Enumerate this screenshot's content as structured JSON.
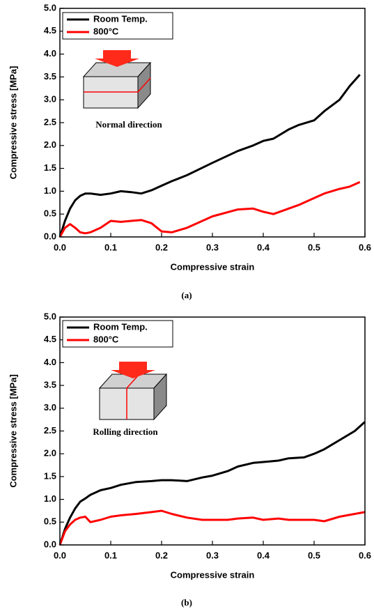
{
  "chart_data": [
    {
      "type": "line",
      "label": "(a)",
      "annotation": "Normal direction",
      "xlabel": "Compressive strain",
      "ylabel": "Compressive stress [MPa]",
      "xlim": [
        0,
        0.6
      ],
      "ylim": [
        0,
        5.0
      ],
      "xticks": [
        {
          "value": 0,
          "label": "0.0"
        },
        0.1,
        0.2,
        0.3,
        0.4,
        0.5,
        0.6
      ],
      "yticks": [
        {
          "value": 0,
          "label": "0.0"
        },
        0.5,
        {
          "value": 1,
          "label": "1.0"
        },
        1.5,
        {
          "value": 2,
          "label": "2.0"
        },
        2.5,
        {
          "value": 3,
          "label": "3.0"
        },
        3.5,
        {
          "value": 4,
          "label": "4.0"
        },
        4.5,
        {
          "value": 5,
          "label": "5.0"
        }
      ],
      "legend": "upper left",
      "x": [
        0,
        0.01,
        0.02,
        0.03,
        0.04,
        0.05,
        0.06,
        0.08,
        0.1,
        0.12,
        0.14,
        0.16,
        0.18,
        0.2,
        0.22,
        0.25,
        0.3,
        0.35,
        0.38,
        0.4,
        0.42,
        0.45,
        0.47,
        0.5,
        0.52,
        0.55,
        0.57,
        0.59
      ],
      "series": [
        {
          "name": "Room Temp.",
          "color": "#000000",
          "values": [
            0,
            0.35,
            0.62,
            0.8,
            0.9,
            0.95,
            0.95,
            0.92,
            0.95,
            1.0,
            0.98,
            0.95,
            1.02,
            1.12,
            1.22,
            1.35,
            1.62,
            1.88,
            2.0,
            2.1,
            2.15,
            2.35,
            2.45,
            2.55,
            2.75,
            3.0,
            3.3,
            3.55
          ]
        },
        {
          "name": "800°C",
          "color": "#ff0000",
          "values": [
            0,
            0.2,
            0.28,
            0.2,
            0.1,
            0.08,
            0.1,
            0.2,
            0.35,
            0.33,
            0.35,
            0.37,
            0.3,
            0.12,
            0.1,
            0.2,
            0.45,
            0.6,
            0.62,
            0.55,
            0.5,
            0.62,
            0.7,
            0.85,
            0.95,
            1.05,
            1.1,
            1.2
          ]
        }
      ]
    },
    {
      "type": "line",
      "label": "(b)",
      "annotation": "Rolling direction",
      "xlabel": "Compressive strain",
      "ylabel": "Compressive stress [MPa]",
      "xlim": [
        0,
        0.6
      ],
      "ylim": [
        0,
        5.0
      ],
      "xticks": [
        {
          "value": 0,
          "label": "0.0"
        },
        0.1,
        0.2,
        0.3,
        0.4,
        0.5,
        0.6
      ],
      "yticks": [
        {
          "value": 0,
          "label": "0.0"
        },
        0.5,
        {
          "value": 1,
          "label": "1.0"
        },
        1.5,
        {
          "value": 2,
          "label": "2.0"
        },
        2.5,
        {
          "value": 3,
          "label": "3.0"
        },
        3.5,
        {
          "value": 4,
          "label": "4.0"
        },
        4.5,
        {
          "value": 5,
          "label": "5.0"
        }
      ],
      "legend": "upper left",
      "x": [
        0,
        0.01,
        0.02,
        0.03,
        0.04,
        0.05,
        0.06,
        0.08,
        0.1,
        0.12,
        0.15,
        0.18,
        0.2,
        0.22,
        0.25,
        0.28,
        0.3,
        0.33,
        0.35,
        0.38,
        0.4,
        0.43,
        0.45,
        0.48,
        0.5,
        0.52,
        0.55,
        0.58,
        0.6
      ],
      "series": [
        {
          "name": "Room Temp.",
          "color": "#000000",
          "values": [
            0,
            0.35,
            0.6,
            0.8,
            0.95,
            1.02,
            1.1,
            1.2,
            1.25,
            1.32,
            1.38,
            1.4,
            1.42,
            1.42,
            1.4,
            1.48,
            1.52,
            1.62,
            1.72,
            1.8,
            1.82,
            1.85,
            1.9,
            1.92,
            2.0,
            2.1,
            2.3,
            2.5,
            2.7
          ]
        },
        {
          "name": "800°C",
          "color": "#ff0000",
          "values": [
            0,
            0.3,
            0.45,
            0.55,
            0.6,
            0.62,
            0.5,
            0.55,
            0.62,
            0.65,
            0.68,
            0.72,
            0.75,
            0.68,
            0.6,
            0.55,
            0.55,
            0.55,
            0.58,
            0.6,
            0.55,
            0.58,
            0.55,
            0.55,
            0.55,
            0.52,
            0.62,
            0.68,
            0.72
          ]
        }
      ]
    }
  ]
}
